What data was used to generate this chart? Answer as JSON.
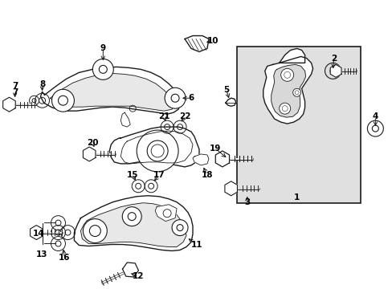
{
  "bg_color": "#ffffff",
  "line_color": "#1a1a1a",
  "box_bg": "#e0e0e0",
  "fig_width": 4.89,
  "fig_height": 3.6,
  "dpi": 100
}
